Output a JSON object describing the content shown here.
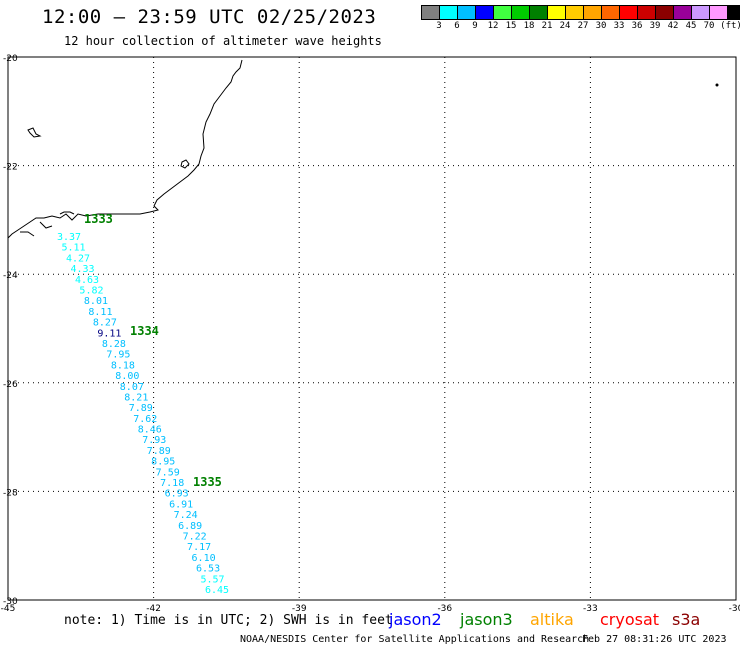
{
  "header": {
    "title": "12:00 – 23:59 UTC 02/25/2023",
    "subtitle": "12 hour collection of altimeter wave heights"
  },
  "colorbar": {
    "colors": [
      "#808080",
      "#00ffff",
      "#00bfff",
      "#0000ff",
      "#40ff40",
      "#00cc00",
      "#008000",
      "#ffff00",
      "#ffcc00",
      "#ffa500",
      "#ff6600",
      "#ff0000",
      "#cc0000",
      "#8b0000",
      "#990099",
      "#cc99ff",
      "#ff99ff",
      "#000000"
    ],
    "labels": [
      "3",
      "6",
      "9",
      "12",
      "15",
      "18",
      "21",
      "24",
      "27",
      "30",
      "33",
      "36",
      "39",
      "42",
      "45",
      "70",
      "(ft)"
    ]
  },
  "map": {
    "lon_range": [
      -45,
      -30
    ],
    "lat_range": [
      -30,
      -20
    ],
    "x_ticks": [
      "-45",
      "-42",
      "-39",
      "-36",
      "-33",
      "-30"
    ],
    "y_ticks": [
      "-20",
      "-22",
      "-24",
      "-26",
      "-28",
      "-30"
    ],
    "grid": "dotted",
    "pass_labels": [
      "1333",
      "1334",
      "1335"
    ],
    "swh_values": [
      {
        "text": "3.37",
        "color": "#00ffff"
      },
      {
        "text": "5.11",
        "color": "#00ffff"
      },
      {
        "text": "4.27",
        "color": "#00ffff"
      },
      {
        "text": "4.33",
        "color": "#00ffff"
      },
      {
        "text": "4.63",
        "color": "#00ffff"
      },
      {
        "text": "5.82",
        "color": "#00ffff"
      },
      {
        "text": "8.01",
        "color": "#00bfff"
      },
      {
        "text": "8.11",
        "color": "#00bfff"
      },
      {
        "text": "8.27",
        "color": "#00bfff"
      },
      {
        "text": "9.11",
        "color": "#000080"
      },
      {
        "text": "8.28",
        "color": "#00bfff"
      },
      {
        "text": "7.95",
        "color": "#00bfff"
      },
      {
        "text": "8.18",
        "color": "#00bfff"
      },
      {
        "text": "8.00",
        "color": "#00bfff"
      },
      {
        "text": "8.07",
        "color": "#00bfff"
      },
      {
        "text": "8.21",
        "color": "#00bfff"
      },
      {
        "text": "7.89",
        "color": "#00bfff"
      },
      {
        "text": "7.62",
        "color": "#00bfff"
      },
      {
        "text": "8.46",
        "color": "#00bfff"
      },
      {
        "text": "7.93",
        "color": "#00bfff"
      },
      {
        "text": "7.89",
        "color": "#00bfff"
      },
      {
        "text": "8.95",
        "color": "#00bfff"
      },
      {
        "text": "7.59",
        "color": "#00bfff"
      },
      {
        "text": "7.18",
        "color": "#00bfff"
      },
      {
        "text": "6.93",
        "color": "#00bfff"
      },
      {
        "text": "6.91",
        "color": "#00bfff"
      },
      {
        "text": "7.24",
        "color": "#00bfff"
      },
      {
        "text": "6.89",
        "color": "#00bfff"
      },
      {
        "text": "7.22",
        "color": "#00bfff"
      },
      {
        "text": "7.17",
        "color": "#00bfff"
      },
      {
        "text": "6.10",
        "color": "#00bfff"
      },
      {
        "text": "6.53",
        "color": "#00bfff"
      },
      {
        "text": "5.57",
        "color": "#00ffff"
      },
      {
        "text": "6.45",
        "color": "#00ffff"
      }
    ]
  },
  "footer": {
    "note": "note: 1) Time is in UTC; 2) SWH is in feet",
    "satellites": [
      {
        "name": "jason2",
        "color": "#0000ff"
      },
      {
        "name": "jason3",
        "color": "#008000"
      },
      {
        "name": "altika",
        "color": "#ffa500"
      },
      {
        "name": "cryosat",
        "color": "#ff0000"
      },
      {
        "name": "s3a",
        "color": "#8b0000"
      }
    ],
    "credit": "NOAA/NESDIS Center for Satellite Applications and Research",
    "timestamp": "Feb 27 08:31:26 UTC 2023"
  }
}
